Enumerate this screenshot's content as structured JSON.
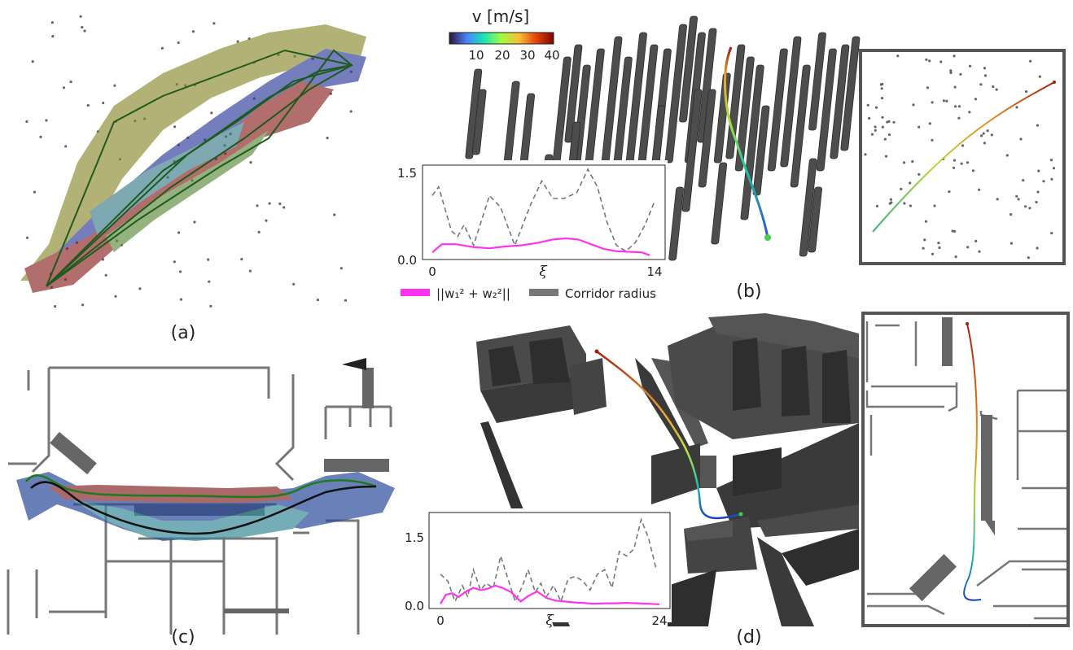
{
  "panels": {
    "a": {
      "label": "(a)"
    },
    "b": {
      "label": "(b)"
    },
    "c": {
      "label": "(c)"
    },
    "d": {
      "label": "(d)"
    }
  },
  "colorbar": {
    "title": "v [m/s]",
    "ticks": [
      "10",
      "20",
      "30",
      "40"
    ],
    "colors": [
      "#30123b",
      "#4686fb",
      "#1ae4b6",
      "#a2fc3c",
      "#fabb39",
      "#e4460a",
      "#7a0403"
    ]
  },
  "legend": {
    "weight_label": "||w₁² + w₂²||",
    "corridor_label": "Corridor radius",
    "weight_color": "#ff33ee",
    "corridor_color": "#777777"
  },
  "chart_data": [
    {
      "type": "line",
      "panel": "b",
      "xlabel": "ξ",
      "xlim": [
        0,
        14
      ],
      "ylim": [
        0,
        1.5
      ],
      "xticks": [
        "0",
        "14"
      ],
      "yticks": [
        "0.0",
        "1.5"
      ],
      "series": [
        {
          "name": "Corridor radius",
          "style": "dashed",
          "color": "#777777",
          "x": [
            0,
            0.4,
            1.2,
            1.6,
            2.0,
            2.6,
            3.6,
            4.3,
            5.2,
            6.2,
            6.9,
            7.6,
            8.3,
            9.1,
            9.8,
            10.4,
            11.0,
            11.6,
            12.2,
            12.8,
            13.4,
            14.0
          ],
          "y": [
            1.05,
            1.2,
            0.45,
            0.35,
            0.55,
            0.2,
            1.05,
            0.85,
            0.2,
            0.9,
            1.3,
            1.0,
            1.0,
            1.1,
            1.5,
            1.2,
            0.6,
            0.2,
            0.1,
            0.25,
            0.55,
            0.95
          ]
        },
        {
          "name": "||w₁² + w₂²||",
          "style": "solid",
          "color": "#ff33ee",
          "x": [
            0,
            0.6,
            1.5,
            2.6,
            3.6,
            4.6,
            5.6,
            6.6,
            7.6,
            8.4,
            9.2,
            10.0,
            10.8,
            11.6,
            12.4,
            13.2,
            13.7
          ],
          "y": [
            0.08,
            0.22,
            0.22,
            0.17,
            0.15,
            0.18,
            0.2,
            0.24,
            0.3,
            0.32,
            0.3,
            0.22,
            0.14,
            0.1,
            0.09,
            0.08,
            0.03
          ]
        }
      ]
    },
    {
      "type": "line",
      "panel": "d",
      "xlabel": "ξ",
      "xlim": [
        0,
        24
      ],
      "ylim": [
        0,
        2.0
      ],
      "xticks": [
        "0",
        "24"
      ],
      "yticks": [
        "0.0",
        "1.5"
      ],
      "series": [
        {
          "name": "Corridor radius",
          "style": "dashed",
          "color": "#777777",
          "x": [
            0,
            0.8,
            1.6,
            2.4,
            3.0,
            3.6,
            4.4,
            5.0,
            5.8,
            6.6,
            7.4,
            8.2,
            9.0,
            9.6,
            10.4,
            11.0,
            11.6,
            12.4,
            13.2,
            14.0,
            14.8,
            15.6,
            16.4,
            17.2,
            18.0,
            18.8,
            19.6,
            20.4,
            21.2,
            22.0,
            22.8,
            23.6
          ],
          "y": [
            0.7,
            0.55,
            0.1,
            0.45,
            0.2,
            0.8,
            0.35,
            0.5,
            0.4,
            1.1,
            0.6,
            0.1,
            0.45,
            0.8,
            0.3,
            0.5,
            0.2,
            0.45,
            0.1,
            0.6,
            0.65,
            0.55,
            0.35,
            0.7,
            0.8,
            0.4,
            1.2,
            1.1,
            1.25,
            1.9,
            1.5,
            0.85
          ]
        },
        {
          "name": "||w₁² + w₂²||",
          "style": "solid",
          "color": "#ff33ee",
          "x": [
            0,
            0.6,
            1.3,
            2.0,
            2.8,
            3.6,
            4.4,
            5.2,
            6.0,
            6.8,
            7.8,
            8.8,
            9.6,
            10.6,
            11.6,
            12.6,
            13.6,
            14.6,
            15.6,
            16.8,
            18.0,
            19.2,
            20.4,
            21.6,
            22.8,
            24.0
          ],
          "y": [
            0.05,
            0.25,
            0.28,
            0.2,
            0.32,
            0.4,
            0.35,
            0.38,
            0.45,
            0.4,
            0.3,
            0.1,
            0.22,
            0.32,
            0.18,
            0.12,
            0.1,
            0.08,
            0.07,
            0.05,
            0.06,
            0.06,
            0.07,
            0.06,
            0.05,
            0.04
          ]
        }
      ]
    }
  ]
}
